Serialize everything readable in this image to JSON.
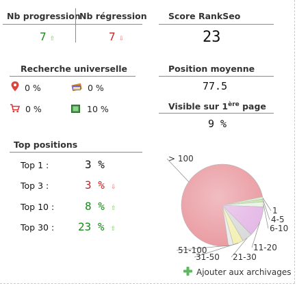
{
  "progression": {
    "header": "Nb progression",
    "value": "7",
    "arrow": "⇧"
  },
  "regression": {
    "header": "Nb régression",
    "value": "7",
    "arrow": "⇩"
  },
  "score": {
    "header": "Score RankSeo",
    "value": "23"
  },
  "recherche": {
    "header": "Recherche universelle",
    "items": [
      {
        "icon": "map-pin-icon",
        "value": "0 %"
      },
      {
        "icon": "books-icon",
        "value": "0 %"
      },
      {
        "icon": "cart-icon",
        "value": "0 %"
      },
      {
        "icon": "image-icon",
        "value": "10 %"
      }
    ]
  },
  "position": {
    "header": "Position moyenne",
    "value": "77.5"
  },
  "visible": {
    "header_prefix": "Visible sur 1",
    "header_sup": "ère",
    "header_suffix": " page",
    "value": "9 %"
  },
  "top": {
    "header": "Top positions",
    "rows": [
      {
        "label": "Top 1 :",
        "value": "3 %",
        "color": "#111111",
        "arrow": ""
      },
      {
        "label": "Top 3 :",
        "value": "3 %",
        "color": "#cc2222",
        "arrow": "⇩"
      },
      {
        "label": "Top 10 :",
        "value": "8 %",
        "color": "#1a8a1a",
        "arrow": "⇧"
      },
      {
        "label": "Top 30 :",
        "value": "23 %",
        "color": "#1a8a1a",
        "arrow": "⇧"
      }
    ]
  },
  "chart_data": {
    "type": "pie",
    "slices": [
      {
        "label": "1",
        "value": 1.0,
        "color": "#d9f0c8"
      },
      {
        "label": "4-5",
        "value": 1.0,
        "color": "#c8e8b0"
      },
      {
        "label": "6-10",
        "value": 2.0,
        "color": "#e8f4e0"
      },
      {
        "label": "11-20",
        "value": 12.0,
        "color": "#e4b7e6"
      },
      {
        "label": "21-30",
        "value": 4.0,
        "color": "#d9d9d9"
      },
      {
        "label": "31-50",
        "value": 4.0,
        "color": "#f3f0b2"
      },
      {
        "label": "51-100",
        "value": 2.0,
        "color": "#eaeaea"
      },
      {
        "label": "> 100",
        "value": 74.0,
        "color": "#e99aa0"
      }
    ]
  },
  "archive": {
    "label": "Ajouter aux archivages",
    "icon": "plus-icon"
  }
}
